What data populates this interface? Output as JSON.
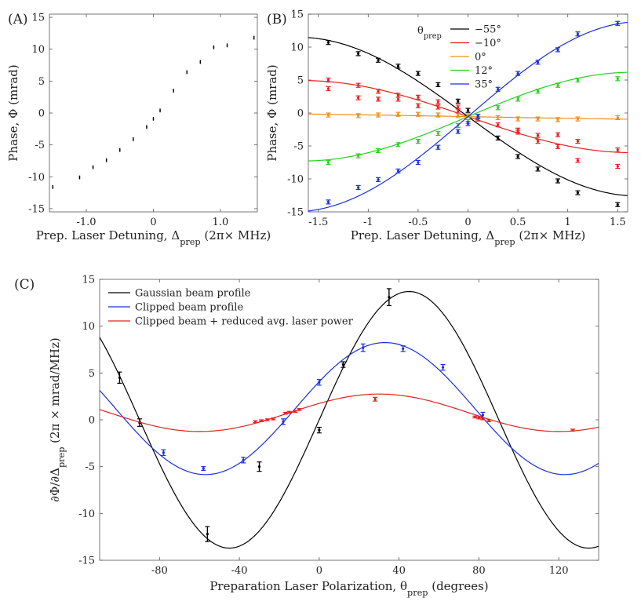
{
  "panels": [
    {
      "id": "A",
      "label": "(A)",
      "type": "scatter",
      "xlabel": "Prep. Laser Detuning, Δ_prep (2π× MHz)",
      "ylabel": "Phase, Φ (mrad)",
      "xlim": [
        -1.55,
        1.55
      ],
      "ylim": [
        -15.5,
        15.5
      ],
      "xticks": [
        -1.0,
        0,
        1.0
      ],
      "xticklabels": [
        "-1.0",
        "0",
        "1.0"
      ],
      "yticks": [
        -15,
        -10,
        -5,
        0,
        5,
        10,
        15
      ],
      "yticklabels": [
        "-15",
        "-10",
        "-5",
        "0",
        "5",
        "10",
        "15"
      ],
      "series": [
        {
          "name": "data",
          "color": "#000000",
          "x": [
            -1.5,
            -1.1,
            -0.9,
            -0.7,
            -0.5,
            -0.3,
            -0.1,
            0.0,
            0.1,
            0.3,
            0.5,
            0.7,
            0.9,
            1.1,
            1.5
          ],
          "y": [
            -11.6,
            -10.1,
            -8.5,
            -7.4,
            -5.8,
            -4.1,
            -2.2,
            -0.9,
            0.4,
            3.5,
            6.4,
            8.0,
            10.3,
            10.6,
            11.8
          ],
          "err": [
            0.3,
            0.3,
            0.3,
            0.3,
            0.3,
            0.3,
            0.3,
            0.3,
            0.3,
            0.3,
            0.3,
            0.3,
            0.3,
            0.3,
            0.3
          ]
        }
      ]
    },
    {
      "id": "B",
      "label": "(B)",
      "type": "scatter+line",
      "xlabel": "Prep. Laser Detuning, Δ_prep (2π× MHz)",
      "ylabel": "Phase, Φ (mrad)",
      "xlim": [
        -1.6,
        1.6
      ],
      "ylim": [
        -15,
        15
      ],
      "xticks": [
        -1.5,
        -1,
        -0.5,
        0,
        0.5,
        1,
        1.5
      ],
      "xticklabels": [
        "-1.5",
        "-1",
        "-0.5",
        "0",
        "0.5",
        "1",
        "1.5"
      ],
      "yticks": [
        -15,
        -10,
        -5,
        0,
        5,
        10,
        15
      ],
      "yticklabels": [
        "-15",
        "-10",
        "-5",
        "0",
        "5",
        "10",
        "15"
      ],
      "legend_title": "θ_prep",
      "legend_position": "top-center",
      "series": [
        {
          "name": "−55°",
          "color": "#000000",
          "x": [
            -1.4,
            -1.1,
            -0.9,
            -0.7,
            -0.5,
            -0.3,
            -0.1,
            0.0,
            0.1,
            0.3,
            0.5,
            0.7,
            0.9,
            1.1,
            1.5
          ],
          "y": [
            10.7,
            9.0,
            8.0,
            7.1,
            6.0,
            4.3,
            1.8,
            0.4,
            -0.9,
            -3.8,
            -6.6,
            -8.5,
            -10.3,
            -12.1,
            -13.9
          ],
          "fit": {
            "a": -12.05,
            "b": 0.92,
            "c": -1.83
          }
        },
        {
          "name": "−10°",
          "color": "#e8201f",
          "x": [
            -1.4,
            -1.4,
            -1.1,
            -1.1,
            -0.9,
            -0.9,
            -0.7,
            -0.7,
            -0.5,
            -0.5,
            -0.3,
            -0.3,
            -0.1,
            -0.1,
            0.1,
            0.3,
            0.5,
            0.5,
            0.7,
            0.7,
            0.9,
            0.9,
            1.1,
            1.1,
            1.5,
            1.5
          ],
          "y": [
            5.0,
            3.7,
            4.2,
            2.3,
            3.3,
            2.1,
            2.7,
            2.1,
            1.1,
            2.4,
            1.7,
            0.9,
            0.9,
            0.3,
            -0.9,
            -1.8,
            -2.6,
            -2.9,
            -3.4,
            -4.3,
            -3.3,
            -5.1,
            -4.3,
            -7.2,
            -5.6,
            -8.1
          ],
          "fit": {
            "a": -5.47,
            "b": 0.95,
            "c": -1.1
          }
        },
        {
          "name": "0°",
          "color": "#e8901a",
          "x": [
            -1.4,
            -1.1,
            -0.9,
            -0.7,
            -0.5,
            -0.3,
            -0.1,
            0.0,
            0.1,
            0.3,
            0.5,
            0.7,
            0.9,
            1.1,
            1.5
          ],
          "y": [
            -0.3,
            -0.4,
            -0.3,
            -0.2,
            -0.2,
            -0.3,
            -0.4,
            -0.4,
            -0.5,
            -0.7,
            -0.9,
            -0.9,
            -1.0,
            -0.9,
            -0.7
          ],
          "fit": {
            "a": -0.54,
            "b": 0.5,
            "c": -0.4
          }
        },
        {
          "name": "12°",
          "color": "#22d21d",
          "x": [
            -1.4,
            -1.1,
            -0.9,
            -0.7,
            -0.5,
            -0.3,
            -0.1,
            0.0,
            0.1,
            0.3,
            0.5,
            0.7,
            0.9,
            1.1,
            1.5
          ],
          "y": [
            -7.5,
            -6.5,
            -5.7,
            -4.8,
            -4.3,
            -3.1,
            -1.9,
            -1.3,
            -0.5,
            0.8,
            2.1,
            3.3,
            4.2,
            5.0,
            5.2
          ],
          "fit": {
            "a": 6.73,
            "b": 0.95,
            "c": -0.97
          }
        },
        {
          "name": "35°",
          "color": "#1a2fe0",
          "x": [
            -1.4,
            -1.1,
            -0.9,
            -0.7,
            -0.5,
            -0.3,
            -0.1,
            0.0,
            0.1,
            0.3,
            0.5,
            0.7,
            0.9,
            1.1,
            1.5
          ],
          "y": [
            -13.5,
            -11.3,
            -10.1,
            -8.8,
            -7.5,
            -5.2,
            -2.8,
            -1.6,
            -0.5,
            3.6,
            6.0,
            7.7,
            9.6,
            12.0,
            13.6
          ],
          "fit": {
            "a": 14.43,
            "b": 0.9,
            "c": -0.94
          }
        }
      ]
    },
    {
      "id": "C",
      "label": "(C)",
      "type": "scatter+line",
      "xlabel": "Preparation Laser Polarization, θ_prep (degrees)",
      "ylabel": "∂Φ/∂Δ_prep (2π × mrad/MHz)",
      "xlim": [
        -110,
        140
      ],
      "ylim": [
        -15,
        15
      ],
      "xticks": [
        -80,
        -40,
        0,
        40,
        80,
        120
      ],
      "xticklabels": [
        "-80",
        "-40",
        "0",
        "40",
        "80",
        "120"
      ],
      "yticks": [
        -15,
        -10,
        -5,
        0,
        5,
        10,
        15
      ],
      "yticklabels": [
        "-15",
        "-10",
        "-5",
        "0",
        "5",
        "10",
        "15"
      ],
      "legend_position": "top-left",
      "series": [
        {
          "name": "Gaussian beam profile",
          "color": "#000000",
          "x": [
            -100,
            -90,
            -56,
            -30,
            0,
            12,
            35
          ],
          "y": [
            4.5,
            -0.3,
            -12.2,
            -5.0,
            -1.1,
            5.9,
            13.1
          ],
          "err": [
            0.6,
            0.4,
            0.8,
            0.5,
            0.3,
            0.3,
            0.9
          ],
          "fit": {
            "amp": 13.7,
            "x0": 45,
            "period": 180,
            "offset": 0
          }
        },
        {
          "name": "Clipped beam profile",
          "color": "#1a2fe0",
          "x": [
            -78,
            -58,
            -38,
            -18,
            0,
            22,
            42,
            62,
            82
          ],
          "y": [
            -3.5,
            -5.2,
            -4.3,
            -0.2,
            4.0,
            7.7,
            7.6,
            5.6,
            0.5
          ],
          "err": [
            0.3,
            0.2,
            0.3,
            0.3,
            0.3,
            0.4,
            0.3,
            0.3,
            0.3
          ],
          "fit": {
            "amp": 7.05,
            "x0": 33,
            "period": 180,
            "offset": 1.2
          }
        },
        {
          "name": "Clipped beam + reduced avg. laser power",
          "color": "#e8201f",
          "x": [
            -32,
            -29,
            -26,
            -23,
            -17,
            -15,
            -12,
            -10,
            28,
            78,
            80,
            82,
            85,
            127
          ],
          "y": [
            -0.2,
            -0.1,
            0.0,
            0.1,
            0.7,
            0.8,
            0.9,
            1.1,
            2.2,
            0.3,
            0.2,
            0.1,
            -0.1,
            -1.1
          ],
          "err": [
            0.1,
            0.1,
            0.1,
            0.1,
            0.1,
            0.1,
            0.1,
            0.1,
            0.2,
            0.1,
            0.1,
            0.1,
            0.1,
            0.1
          ],
          "fit": {
            "amp": 2.0,
            "x0": 30,
            "period": 180,
            "offset": 0.75
          }
        }
      ]
    }
  ]
}
